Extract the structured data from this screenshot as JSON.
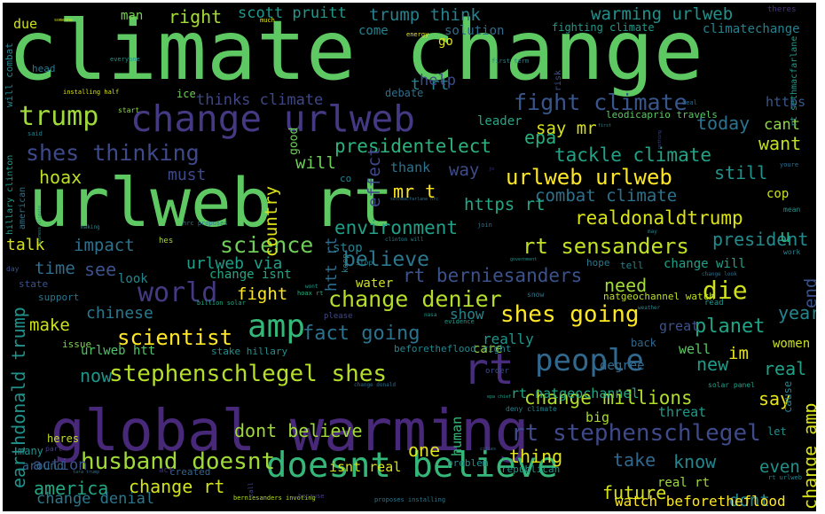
{
  "words": [
    {
      "text": "climate change",
      "color": "#5ec962"
    },
    {
      "text": "urlweb rt",
      "color": "#5ec962"
    },
    {
      "text": "global warming",
      "color": "#482878"
    },
    {
      "text": "change urlweb",
      "color": "#443983"
    },
    {
      "text": "doesnt believe",
      "color": "#35b779"
    },
    {
      "text": "shes going",
      "color": "#fde725"
    },
    {
      "text": "stephenschlegel shes",
      "color": "#b5de2b"
    },
    {
      "text": "rt stephenschlegel",
      "color": "#3e4a89"
    },
    {
      "text": "change denier",
      "color": "#b5de2b"
    },
    {
      "text": "husband doesnt",
      "color": "#a0da39"
    },
    {
      "text": "shes thinking",
      "color": "#3e4989"
    },
    {
      "text": "trump",
      "color": "#9fda3a"
    },
    {
      "text": "amp",
      "color": "#35b779"
    },
    {
      "text": "people",
      "color": "#31688e"
    },
    {
      "text": "rt",
      "color": "#472d7b"
    },
    {
      "text": "urlweb urlweb",
      "color": "#fde725"
    },
    {
      "text": "fight climate",
      "color": "#39568c"
    },
    {
      "text": "science",
      "color": "#6ece58"
    },
    {
      "text": "world",
      "color": "#443a83"
    },
    {
      "text": "die",
      "color": "#d0e11c"
    },
    {
      "text": "planet",
      "color": "#20a486"
    },
    {
      "text": "scientist",
      "color": "#fde725"
    },
    {
      "text": "fact going",
      "color": "#2c728e"
    },
    {
      "text": "believe",
      "color": "#2a788e"
    },
    {
      "text": "rt sensanders",
      "color": "#c2df23"
    },
    {
      "text": "rt berniesanders",
      "color": "#3b528b"
    },
    {
      "text": "presidentelect",
      "color": "#2db27d"
    },
    {
      "text": "tackle climate",
      "color": "#20a386"
    },
    {
      "text": "realdonaldtrump",
      "color": "#dae319"
    },
    {
      "text": "combat climate",
      "color": "#2c728e"
    },
    {
      "text": "environment",
      "color": "#1fa088"
    },
    {
      "text": "change millions",
      "color": "#b2dd2d"
    },
    {
      "text": "dont believe",
      "color": "#9fda3a"
    },
    {
      "text": "america",
      "color": "#22a884"
    },
    {
      "text": "change rt",
      "color": "#d2e21b"
    },
    {
      "text": "right",
      "color": "#a5db36"
    },
    {
      "text": "scott pruitt",
      "color": "#1f9a8a"
    },
    {
      "text": "trump think",
      "color": "#26828e"
    },
    {
      "text": "warming urlweb",
      "color": "#21918c"
    },
    {
      "text": "man",
      "color": "#7ad151"
    },
    {
      "text": "due",
      "color": "#cde11d"
    },
    {
      "text": "t rt",
      "color": "#26818e"
    },
    {
      "text": "help",
      "color": "#3e4c8a"
    },
    {
      "text": "thinks climate",
      "color": "#3f4788"
    },
    {
      "text": "say mr",
      "color": "#d8e219"
    },
    {
      "text": "epa",
      "color": "#29af7f"
    },
    {
      "text": "today",
      "color": "#2c728e"
    },
    {
      "text": "cant",
      "color": "#8fd744"
    },
    {
      "text": "want",
      "color": "#c2df23"
    },
    {
      "text": "still",
      "color": "#21918c"
    },
    {
      "text": "hoax",
      "color": "#bddf26"
    },
    {
      "text": "must",
      "color": "#3e4a89"
    },
    {
      "text": "will",
      "color": "#6ece58"
    },
    {
      "text": "mr t",
      "color": "#fde725"
    },
    {
      "text": "https rt",
      "color": "#22a884"
    },
    {
      "text": "talk",
      "color": "#d5e21a"
    },
    {
      "text": "impact",
      "color": "#2c728e"
    },
    {
      "text": "time",
      "color": "#2e6e8e"
    },
    {
      "text": "see",
      "color": "#3b528b"
    },
    {
      "text": "urlweb via",
      "color": "#1f9e89"
    },
    {
      "text": "president",
      "color": "#228c8d"
    },
    {
      "text": "fight",
      "color": "#fde725"
    },
    {
      "text": "need",
      "color": "#a2da37"
    },
    {
      "text": "year",
      "color": "#25848e"
    },
    {
      "text": "make",
      "color": "#cde11d"
    },
    {
      "text": "chinese",
      "color": "#2a778e"
    },
    {
      "text": "now",
      "color": "#1f968b"
    },
    {
      "text": "one",
      "color": "#dde318"
    },
    {
      "text": "thing",
      "color": "#e2e418"
    },
    {
      "text": "take",
      "color": "#31688e"
    },
    {
      "text": "know",
      "color": "#24868e"
    },
    {
      "text": "real",
      "color": "#1fa287"
    },
    {
      "text": "new",
      "color": "#1e9b8a"
    },
    {
      "text": "im",
      "color": "#e5e419"
    },
    {
      "text": "say",
      "color": "#e7e419"
    },
    {
      "text": "future",
      "color": "#d5e21a"
    },
    {
      "text": "dont",
      "color": "#24878e"
    },
    {
      "text": "even",
      "color": "#21918c"
    },
    {
      "text": "leader",
      "color": "#22a785"
    },
    {
      "text": "show",
      "color": "#24868e"
    },
    {
      "text": "really",
      "color": "#1f958b"
    },
    {
      "text": "women",
      "color": "#cae11f"
    },
    {
      "text": "human",
      "color": "#35b779"
    },
    {
      "text": "action",
      "color": "#3b528b"
    },
    {
      "text": "earthdonald trump",
      "color": "#21918c"
    },
    {
      "text": "country",
      "color": "#dde318"
    },
    {
      "text": "effect",
      "color": "#3e4a89"
    },
    {
      "text": "change amp",
      "color": "#d8e219"
    },
    {
      "text": "end",
      "color": "#3b528b"
    },
    {
      "text": "way",
      "color": "#3e4c8a"
    },
    {
      "text": "thank",
      "color": "#2c738e"
    },
    {
      "text": "solution",
      "color": "#2e6d8e"
    },
    {
      "text": "go",
      "color": "#dde318"
    },
    {
      "text": "come",
      "color": "#26818e"
    },
    {
      "text": "fighting climate",
      "color": "#1f9a8a"
    },
    {
      "text": "climatechange",
      "color": "#26818e"
    },
    {
      "text": "good",
      "color": "#6ece58"
    },
    {
      "text": "https",
      "color": "#39568c"
    },
    {
      "text": "leodicaprio travels",
      "color": "#5cc863"
    },
    {
      "text": "rt sethmacfarlane",
      "color": "#1e9c89"
    },
    {
      "text": "cop",
      "color": "#cde11d"
    },
    {
      "text": "u",
      "color": "#27ad81"
    },
    {
      "text": "change will",
      "color": "#1fa187"
    },
    {
      "text": "tell",
      "color": "#25838e"
    },
    {
      "text": "hope",
      "color": "#2a788e"
    },
    {
      "text": "rt natgeochannel",
      "color": "#22a884"
    },
    {
      "text": "cause",
      "color": "#25848e"
    },
    {
      "text": "big",
      "color": "#a8db34"
    },
    {
      "text": "threat",
      "color": "#1f9a8a"
    },
    {
      "text": "let",
      "color": "#228d8d"
    },
    {
      "text": "well",
      "color": "#5ec962"
    },
    {
      "text": "degree",
      "color": "#2f6b8e"
    },
    {
      "text": "back",
      "color": "#31688e"
    },
    {
      "text": "great",
      "color": "#3b528b"
    },
    {
      "text": "care",
      "color": "#98d83e"
    },
    {
      "text": "watch beforetheflood",
      "color": "#fde725"
    },
    {
      "text": "real rt",
      "color": "#9dd93b"
    },
    {
      "text": "isnt real",
      "color": "#d8e219"
    },
    {
      "text": "change denial",
      "color": "#2a788e"
    },
    {
      "text": "urlweb htt",
      "color": "#50c46a"
    },
    {
      "text": "look",
      "color": "#24868e"
    },
    {
      "text": "water",
      "color": "#d0e11c"
    },
    {
      "text": "stop",
      "color": "#26818e"
    },
    {
      "text": "htt rt",
      "color": "#2e6d8e"
    },
    {
      "text": "change isnt",
      "color": "#22a884"
    },
    {
      "text": "issue",
      "color": "#7fd34e"
    },
    {
      "text": "stake hillary",
      "color": "#21918c"
    },
    {
      "text": "heres",
      "color": "#c2df23"
    },
    {
      "text": "around",
      "color": "#31688e"
    },
    {
      "text": "many",
      "color": "#21918c"
    },
    {
      "text": "part",
      "color": "#433d84"
    },
    {
      "text": "state",
      "color": "#3b528b"
    },
    {
      "text": "support",
      "color": "#2a768e"
    },
    {
      "text": "problem",
      "color": "#228d8d"
    },
    {
      "text": "republican",
      "color": "#1f9a8a"
    },
    {
      "text": "created",
      "color": "#33638d"
    },
    {
      "text": "act",
      "color": "#46337e"
    },
    {
      "text": "hillary clinton",
      "color": "#1f9a8a"
    },
    {
      "text": "american",
      "color": "#2c728e"
    },
    {
      "text": "will combat",
      "color": "#26828e"
    },
    {
      "text": "energy",
      "color": "#f1e51d"
    },
    {
      "text": "installing half",
      "color": "#d8e219"
    },
    {
      "text": "debate",
      "color": "#2e6f8e"
    },
    {
      "text": "ice",
      "color": "#6ece58"
    },
    {
      "text": "everyone",
      "color": "#1f968b"
    },
    {
      "text": "start",
      "color": "#8ed645"
    },
    {
      "text": "said",
      "color": "#26818e"
    },
    {
      "text": "head",
      "color": "#2a788e"
    },
    {
      "text": "risk",
      "color": "#3b528b"
    },
    {
      "text": "first term",
      "color": "#26828e"
    },
    {
      "text": "much",
      "color": "#e2e418"
    },
    {
      "text": "someone",
      "color": "#d5e21a"
    },
    {
      "text": "theres",
      "color": "#463480"
    },
    {
      "text": "deal",
      "color": "#2e6d8e"
    },
    {
      "text": "mean",
      "color": "#21918c"
    },
    {
      "text": "work",
      "color": "#26818e"
    },
    {
      "text": "youre",
      "color": "#2e6e8e"
    },
    {
      "text": "hrc proposes",
      "color": "#2a778e"
    },
    {
      "text": "making",
      "color": "#24868e"
    },
    {
      "text": "hes",
      "color": "#a5db36"
    },
    {
      "text": "clinton will",
      "color": "#26818e"
    },
    {
      "text": "join",
      "color": "#2e6d8e"
    },
    {
      "text": "keep",
      "color": "#24868e"
    },
    {
      "text": "government",
      "color": "#21918c"
    },
    {
      "text": "billion solar",
      "color": "#22a884"
    },
    {
      "text": "hoax rt",
      "color": "#27ad81"
    },
    {
      "text": "wont",
      "color": "#1f9a8a"
    },
    {
      "text": "please",
      "color": "#3e4989"
    },
    {
      "text": "nasa",
      "color": "#1f968b"
    },
    {
      "text": "evidence",
      "color": "#1f9a8a"
    },
    {
      "text": "snow",
      "color": "#2a788e"
    },
    {
      "text": "weather",
      "color": "#26828e"
    },
    {
      "text": "natgeochannel watch",
      "color": "#bddf26"
    },
    {
      "text": "change look",
      "color": "#2e6e8e"
    },
    {
      "text": "read",
      "color": "#1f968b"
    },
    {
      "text": "stop",
      "color": "#26818e"
    },
    {
      "text": "solar panel",
      "color": "#1fa188"
    },
    {
      "text": "order",
      "color": "#3e4989"
    },
    {
      "text": "change donald",
      "color": "#2e6d8e"
    },
    {
      "text": "epa chief",
      "color": "#1fa088"
    },
    {
      "text": "deny climate",
      "color": "#26818e"
    },
    {
      "text": "cities",
      "color": "#2e6d8e"
    },
    {
      "text": "berniesanders invoting",
      "color": "#b5de2b"
    },
    {
      "text": "because",
      "color": "#433d84"
    },
    {
      "text": "proposes installing",
      "color": "#2a788e"
    },
    {
      "text": "rt urlweb",
      "color": "#26828e"
    },
    {
      "text": "call",
      "color": "#3e4989"
    },
    {
      "text": "beforetheflood right",
      "color": "#24868e"
    },
    {
      "text": "day",
      "color": "#3b528b"
    },
    {
      "text": "sethmacfarlane hrc",
      "color": "#2c728e"
    },
    {
      "text": "co",
      "color": "#26818e"
    },
    {
      "text": "jo",
      "color": "#46337e"
    },
    {
      "text": "first",
      "color": "#25858e"
    },
    {
      "text": "nothing",
      "color": "#3e4989"
    },
    {
      "text": "may",
      "color": "#26828e"
    },
    {
      "text": "tara trump",
      "color": "#2c728e"
    },
    {
      "text": "address climate",
      "color": "#21918c"
    }
  ]
}
